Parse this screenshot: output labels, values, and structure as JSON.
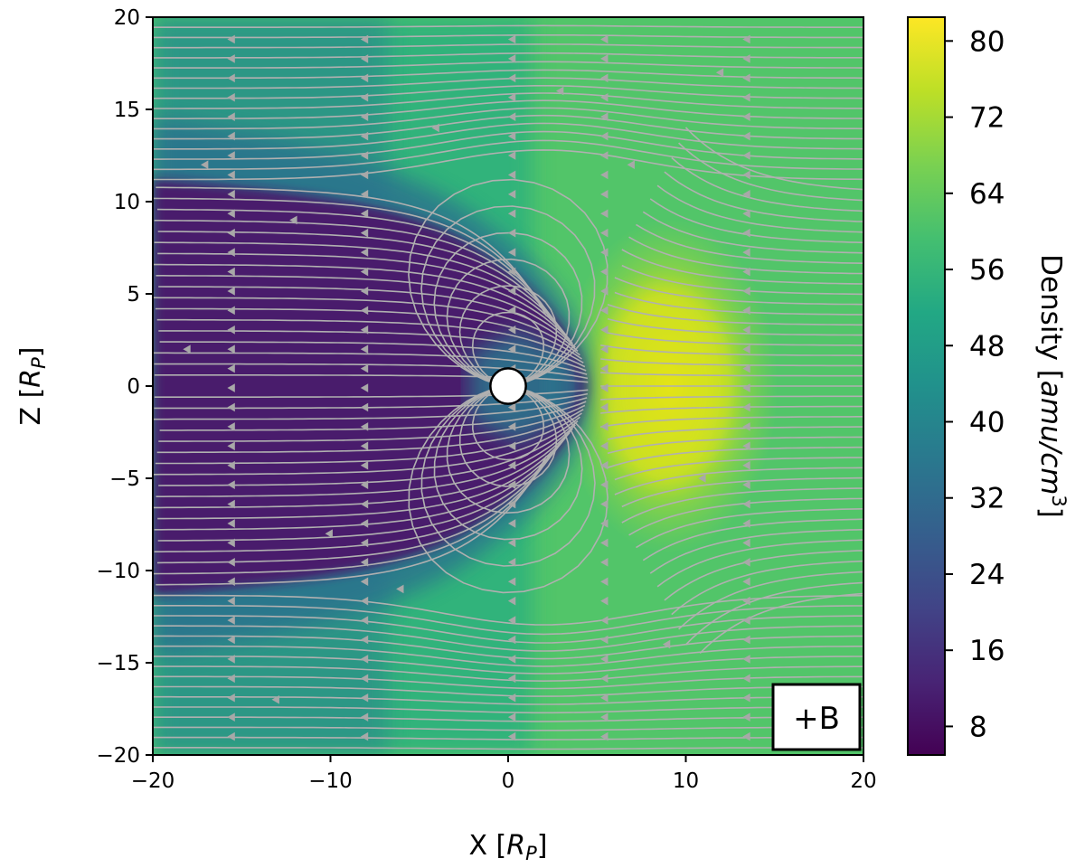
{
  "chart_data": {
    "type": "heatmap",
    "xlabel_main": "X [",
    "xlabel_sub": "R",
    "xlabel_subscript": "P",
    "xlabel_end": "]",
    "ylabel_main": "Z [",
    "ylabel_sub": "R",
    "ylabel_subscript": "P",
    "ylabel_end": "]",
    "xlim": [
      -20,
      20
    ],
    "ylim": [
      -20,
      20
    ],
    "x_ticks": [
      -20,
      -10,
      0,
      10,
      20
    ],
    "x_tick_labels": [
      "−20",
      "−10",
      "0",
      "10",
      "20"
    ],
    "y_ticks": [
      -20,
      -15,
      -10,
      -5,
      0,
      5,
      10,
      15,
      20
    ],
    "y_tick_labels": [
      "−20",
      "−15",
      "−10",
      "−5",
      "0",
      "5",
      "10",
      "15",
      "20"
    ],
    "colorbar": {
      "label_main": "Density [",
      "label_units": "amu/cm",
      "label_exp": "3",
      "label_end": "]",
      "ticks": [
        8,
        16,
        24,
        32,
        40,
        48,
        56,
        64,
        72,
        80
      ],
      "tick_labels": [
        "8",
        "16",
        "24",
        "32",
        "40",
        "48",
        "56",
        "64",
        "72",
        "80"
      ],
      "vmin": 5,
      "vmax": 82.5,
      "colormap": "viridis"
    },
    "planet": {
      "x": 0,
      "z": 0,
      "radius": 1,
      "color": "#ffffff"
    },
    "field_lines_color": "#b0b0b0",
    "grid": false,
    "annotation": "+B"
  }
}
